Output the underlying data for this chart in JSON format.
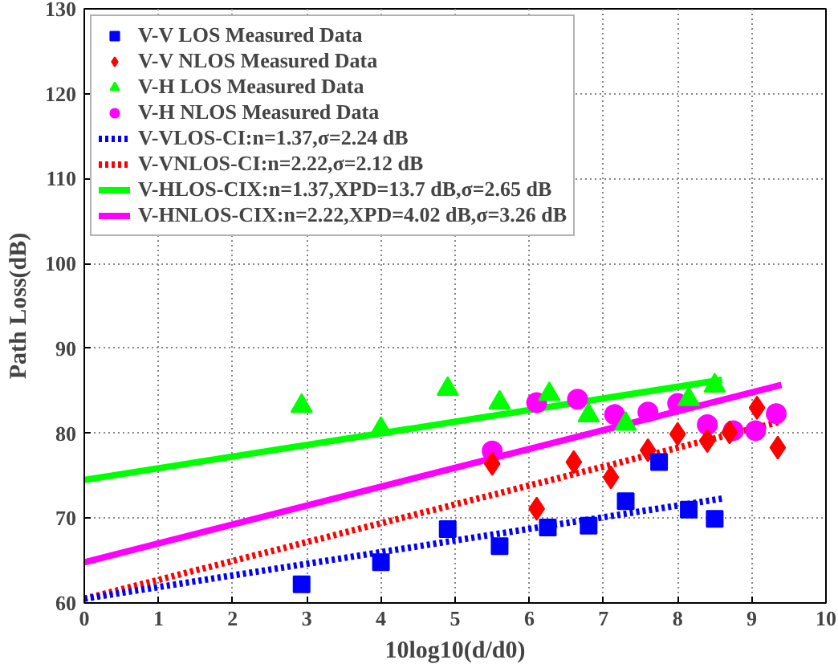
{
  "chart_data": {
    "type": "scatter",
    "xlabel": "10log10(d/d0)",
    "ylabel": "Path Loss(dB)",
    "xlim": [
      0,
      10
    ],
    "ylim": [
      60,
      130
    ],
    "xticks": [
      0,
      1,
      2,
      3,
      4,
      5,
      6,
      7,
      8,
      9,
      10
    ],
    "yticks": [
      60,
      70,
      80,
      90,
      100,
      110,
      120,
      130
    ],
    "grid": true,
    "legend": "top left",
    "series": [
      {
        "name": "V-V LOS Measured Data",
        "color": "#0000ff",
        "marker": "square",
        "x": [
          2.93,
          4.0,
          4.9,
          5.6,
          6.25,
          6.8,
          7.3,
          7.75,
          8.15,
          8.5
        ],
        "values": [
          62.2,
          64.8,
          68.7,
          66.7,
          68.9,
          69.1,
          72,
          76.6,
          71,
          69.9
        ]
      },
      {
        "name": "V-V NLOS Measured Data",
        "color": "#ff0000",
        "marker": "diamond",
        "x": [
          5.5,
          6.1,
          6.6,
          7.1,
          7.6,
          8.0,
          8.4,
          8.7,
          9.07,
          9.35
        ],
        "values": [
          76.4,
          71.1,
          76.6,
          74.8,
          78,
          79.9,
          79.1,
          80.1,
          83,
          78.3
        ]
      },
      {
        "name": "V-H LOS Measured Data",
        "color": "#00ff00",
        "marker": "triangle",
        "x": [
          2.93,
          4.0,
          4.9,
          5.6,
          6.27,
          6.8,
          7.3,
          8.15,
          8.5
        ],
        "values": [
          83.2,
          80.5,
          85.2,
          83.6,
          84.6,
          82.1,
          81.1,
          84,
          85.6
        ]
      },
      {
        "name": "V-H NLOS Measured Data",
        "color": "#ff00ff",
        "marker": "circle",
        "x": [
          5.5,
          6.1,
          6.65,
          7.15,
          7.6,
          8.0,
          8.4,
          8.75,
          9.05,
          9.33
        ],
        "values": [
          77.9,
          83.6,
          84,
          82.2,
          82.5,
          83.5,
          81,
          80.3,
          80.3,
          82.3
        ]
      },
      {
        "name": "V-VLOS-CI:n=1.37,σ=2.24 dB",
        "type": "line",
        "line_style": "dotted",
        "color": "#0000ff",
        "x": [
          0,
          8.6
        ],
        "values": [
          60.5,
          72.3
        ]
      },
      {
        "name": "V-VNLOS-CI:n=2.22,σ=2.12 dB",
        "type": "line",
        "line_style": "dotted",
        "color": "#ff0000",
        "x": [
          0,
          9.4
        ],
        "values": [
          60.5,
          81.4
        ]
      },
      {
        "name": "V-HLOS-CIX:n=1.37,XPD=13.7 dB,σ=2.65 dB",
        "type": "line",
        "line_style": "solid",
        "color": "#00ff00",
        "x": [
          0,
          8.6
        ],
        "values": [
          74.5,
          86.3
        ]
      },
      {
        "name": "V-HNLOS-CIX:n=2.22,XPD=4.02 dB,σ=3.26 dB",
        "type": "line",
        "line_style": "solid",
        "color": "#ff00ff",
        "x": [
          0,
          9.4
        ],
        "values": [
          64.8,
          85.7
        ]
      }
    ]
  }
}
